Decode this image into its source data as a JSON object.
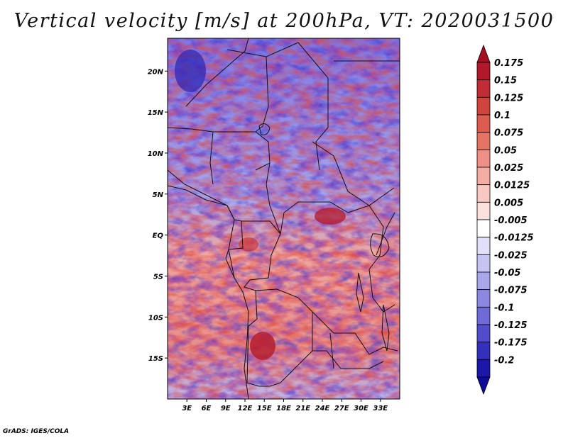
{
  "title": "Vertical velocity [m/s] at 200hPa, VT: 2020031500",
  "credit": "GrADS: IGES/COLA",
  "map": {
    "variable": "Vertical velocity",
    "units": "m/s",
    "level": "200hPa",
    "valid_time": "2020031500",
    "lon_range": [
      0,
      36
    ],
    "lat_range": [
      -20,
      24
    ],
    "lon_ticks": [
      {
        "value": 3,
        "label": "3E"
      },
      {
        "value": 6,
        "label": "6E"
      },
      {
        "value": 9,
        "label": "9E"
      },
      {
        "value": 12,
        "label": "12E"
      },
      {
        "value": 15,
        "label": "15E"
      },
      {
        "value": 18,
        "label": "18E"
      },
      {
        "value": 21,
        "label": "21E"
      },
      {
        "value": 24,
        "label": "24E"
      },
      {
        "value": 27,
        "label": "27E"
      },
      {
        "value": 30,
        "label": "30E"
      },
      {
        "value": 33,
        "label": "33E"
      }
    ],
    "lat_ticks": [
      {
        "value": 20,
        "label": "20N"
      },
      {
        "value": 15,
        "label": "15N"
      },
      {
        "value": 10,
        "label": "10N"
      },
      {
        "value": 5,
        "label": "5N"
      },
      {
        "value": 0,
        "label": "EQ"
      },
      {
        "value": -5,
        "label": "5S"
      },
      {
        "value": -10,
        "label": "10S"
      },
      {
        "value": -15,
        "label": "15S"
      }
    ]
  },
  "colorbar": {
    "levels": [
      {
        "label": "0.175",
        "color": "#b2182b"
      },
      {
        "label": "0.15",
        "color": "#c22c34"
      },
      {
        "label": "0.125",
        "color": "#d0443e"
      },
      {
        "label": "0.1",
        "color": "#dc5c50"
      },
      {
        "label": "0.075",
        "color": "#e57464"
      },
      {
        "label": "0.05",
        "color": "#ee9086"
      },
      {
        "label": "0.025",
        "color": "#f4aca5"
      },
      {
        "label": "0.0125",
        "color": "#f8c8c3"
      },
      {
        "label": "0.005",
        "color": "#fbe1de"
      },
      {
        "label": "-0.005",
        "color": "#ffffff"
      },
      {
        "label": "-0.0125",
        "color": "#e2e0f8"
      },
      {
        "label": "-0.025",
        "color": "#c6c4f2"
      },
      {
        "label": "-0.05",
        "color": "#a9a6ea"
      },
      {
        "label": "-0.075",
        "color": "#8c88e2"
      },
      {
        "label": "-0.1",
        "color": "#6e6ad8"
      },
      {
        "label": "-0.125",
        "color": "#514ccc"
      },
      {
        "label": "-0.175",
        "color": "#3530bc"
      },
      {
        "label": "-0.2",
        "color": "#1c17a8"
      }
    ],
    "top_cap_color": "#a50f22",
    "bottom_cap_color": "#100c9a"
  }
}
